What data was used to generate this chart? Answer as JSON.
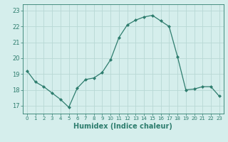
{
  "x": [
    0,
    1,
    2,
    3,
    4,
    5,
    6,
    7,
    8,
    9,
    10,
    11,
    12,
    13,
    14,
    15,
    16,
    17,
    18,
    19,
    20,
    21,
    22,
    23
  ],
  "y": [
    19.2,
    18.5,
    18.2,
    17.8,
    17.4,
    16.9,
    18.1,
    18.65,
    18.75,
    19.1,
    19.9,
    21.3,
    22.1,
    22.4,
    22.6,
    22.7,
    22.35,
    22.0,
    20.1,
    18.0,
    18.05,
    18.2,
    18.2,
    17.6
  ],
  "line_color": "#2e7d6e",
  "marker": "D",
  "marker_size": 2,
  "bg_color": "#d5eeec",
  "grid_color": "#b8d8d5",
  "xlabel": "Humidex (Indice chaleur)",
  "xlabel_fontsize": 7,
  "tick_fontsize": 6,
  "yticks": [
    17,
    18,
    19,
    20,
    21,
    22,
    23
  ],
  "ylim": [
    16.5,
    23.4
  ],
  "xlim": [
    -0.5,
    23.5
  ],
  "xtick_labels": [
    "0",
    "1",
    "2",
    "3",
    "4",
    "5",
    "6",
    "7",
    "8",
    "9",
    "10",
    "11",
    "12",
    "13",
    "14",
    "15",
    "16",
    "17",
    "18",
    "19",
    "20",
    "21",
    "22",
    "23"
  ]
}
